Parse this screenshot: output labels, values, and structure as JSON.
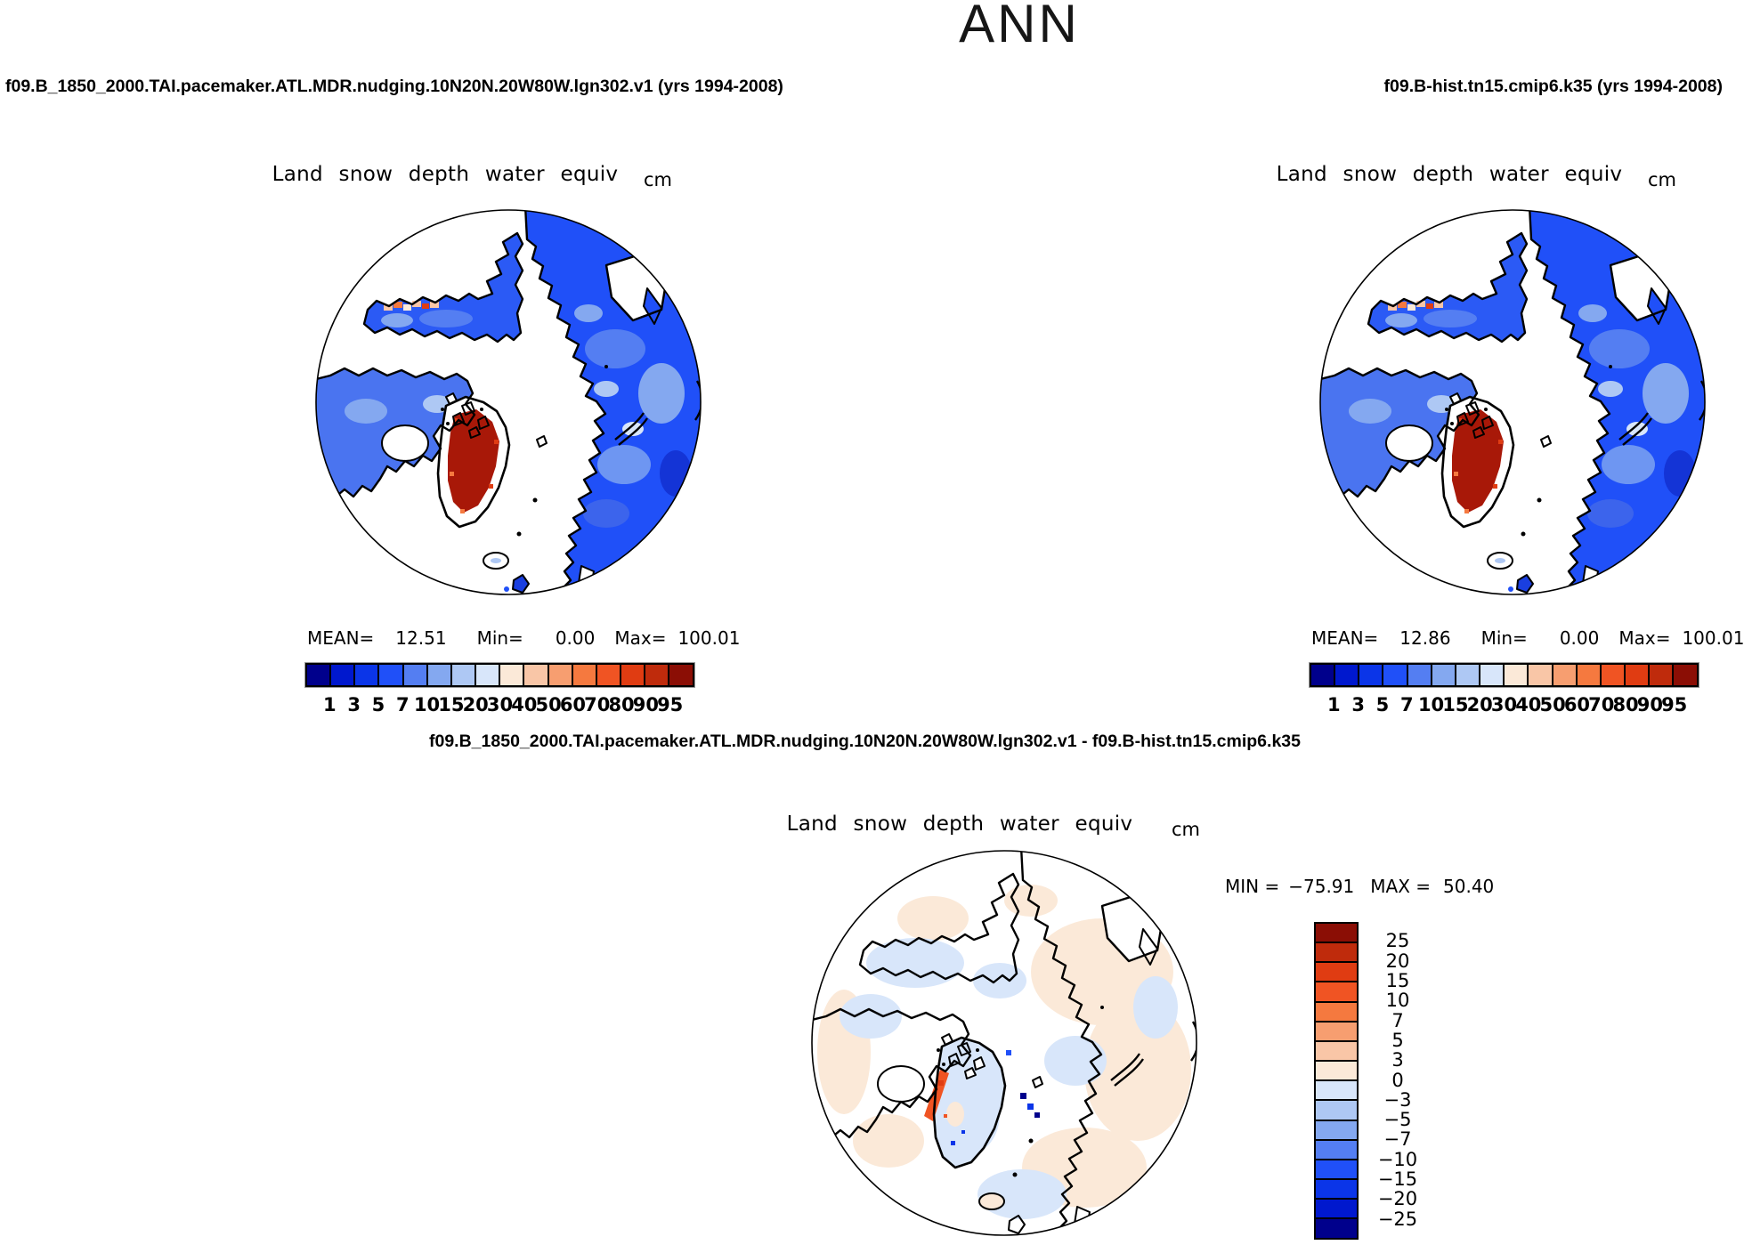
{
  "figure_title": "ANN",
  "header_left": "f09.B_1850_2000.TAI.pacemaker.ATL.MDR.nudging.10N20N.20W80W.lgn302.v1 (yrs 1994-2008)",
  "header_right": "f09.B-hist.tn15.cmip6.k35 (yrs 1994-2008)",
  "diff_header": "f09.B_1850_2000.TAI.pacemaker.ATL.MDR.nudging.10N20N.20W80W.lgn302.v1 - f09.B-hist.tn15.cmip6.k35",
  "panels": {
    "left": {
      "map_title": "Land snow depth water equiv",
      "units": "cm",
      "stats": {
        "mean_label": "MEAN=",
        "mean": "12.51",
        "min_label": "Min=",
        "min": "0.00",
        "max_label": "Max=",
        "max": "100.01"
      }
    },
    "right": {
      "map_title": "Land snow depth water equiv",
      "units": "cm",
      "stats": {
        "mean_label": "MEAN=",
        "mean": "12.86",
        "min_label": "Min=",
        "min": "0.00",
        "max_label": "Max=",
        "max": "100.01"
      }
    },
    "diff": {
      "map_title": "Land snow depth water equiv",
      "units": "cm",
      "stats": {
        "min_label": "MIN =",
        "min": "−75.91",
        "max_label": "MAX =",
        "max": "50.40"
      }
    }
  },
  "colorbars": {
    "top": {
      "colors": [
        "#00008C",
        "#0018CE",
        "#0B35E8",
        "#2050F8",
        "#547EF2",
        "#84A8F0",
        "#AEC8F4",
        "#D8E6FA",
        "#FBE9D8",
        "#F9C6A7",
        "#F79E70",
        "#F5793F",
        "#F05423",
        "#E03C12",
        "#BF2B0C",
        "#8B0E05"
      ],
      "tick_labels": [
        "1",
        "3",
        "5",
        "7",
        "10",
        "15",
        "20",
        "30",
        "40",
        "50",
        "60",
        "70",
        "80",
        "90",
        "95"
      ]
    },
    "diff": {
      "colors": [
        "#8B0E05",
        "#BF2B0C",
        "#E03C12",
        "#F05423",
        "#F5793F",
        "#F79E70",
        "#F9C6A7",
        "#FBE9D8",
        "#D8E6FA",
        "#AEC8F4",
        "#84A8F0",
        "#547EF2",
        "#2050F8",
        "#0B35E8",
        "#0018CE",
        "#00008C"
      ],
      "tick_labels": [
        "25",
        "20",
        "15",
        "10",
        "7",
        "5",
        "3",
        "0",
        "−3",
        "−5",
        "−7",
        "−10",
        "−15",
        "−20",
        "−25"
      ]
    }
  },
  "chart_data": [
    {
      "type": "heatmap",
      "projection": "north polar stereographic",
      "season": "ANN",
      "title": "Land snow depth water equiv",
      "units": "cm",
      "run": "f09.B_1850_2000.TAI.pacemaker.ATL.MDR.nudging.10N20N.20W80W.lgn302.v1",
      "years": "1994-2008",
      "mean": 12.51,
      "min": 0.0,
      "max": 100.01,
      "contour_levels": [
        1,
        3,
        5,
        7,
        10,
        15,
        20,
        30,
        40,
        50,
        60,
        70,
        80,
        90,
        95
      ],
      "palette": "16-class blue-to-red",
      "legend_position": "bottom"
    },
    {
      "type": "heatmap",
      "projection": "north polar stereographic",
      "season": "ANN",
      "title": "Land snow depth water equiv",
      "units": "cm",
      "run": "f09.B-hist.tn15.cmip6.k35",
      "years": "1994-2008",
      "mean": 12.86,
      "min": 0.0,
      "max": 100.01,
      "contour_levels": [
        1,
        3,
        5,
        7,
        10,
        15,
        20,
        30,
        40,
        50,
        60,
        70,
        80,
        90,
        95
      ],
      "palette": "16-class blue-to-red",
      "legend_position": "bottom"
    },
    {
      "type": "heatmap",
      "projection": "north polar stereographic",
      "season": "ANN",
      "title": "Land snow depth water equiv",
      "units": "cm",
      "run": "f09.B_1850_2000.TAI.pacemaker.ATL.MDR.nudging.10N20N.20W80W.lgn302.v1 - f09.B-hist.tn15.cmip6.k35",
      "min": -75.91,
      "max": 50.4,
      "contour_levels": [
        25,
        20,
        15,
        10,
        7,
        5,
        3,
        0,
        -3,
        -5,
        -7,
        -10,
        -15,
        -20,
        -25
      ],
      "palette": "16-class red-to-blue",
      "legend_position": "right"
    }
  ]
}
